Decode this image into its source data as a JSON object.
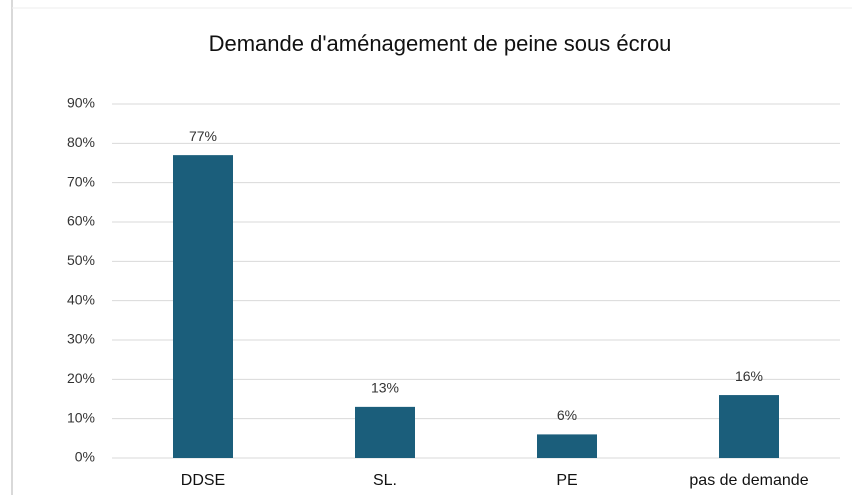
{
  "chart_data": {
    "type": "bar",
    "title": "Demande d'aménagement de peine sous écrou",
    "categories": [
      "DDSE",
      "SL.",
      "PE",
      "pas de demande"
    ],
    "values": [
      77,
      13,
      6,
      16
    ],
    "value_labels": [
      "77%",
      "13%",
      "6%",
      "16%"
    ],
    "color": "#1b5e7b",
    "ylim": [
      0,
      90
    ],
    "yticks": [
      {
        "value": 0,
        "label": "0%"
      },
      {
        "value": 10,
        "label": "10%"
      },
      {
        "value": 20,
        "label": "20%"
      },
      {
        "value": 30,
        "label": "30%"
      },
      {
        "value": 40,
        "label": "40%"
      },
      {
        "value": 50,
        "label": "50%"
      },
      {
        "value": 60,
        "label": "60%"
      },
      {
        "value": 70,
        "label": "70%"
      },
      {
        "value": 80,
        "label": "80%"
      },
      {
        "value": 90,
        "label": "90%"
      }
    ],
    "grid": true
  }
}
